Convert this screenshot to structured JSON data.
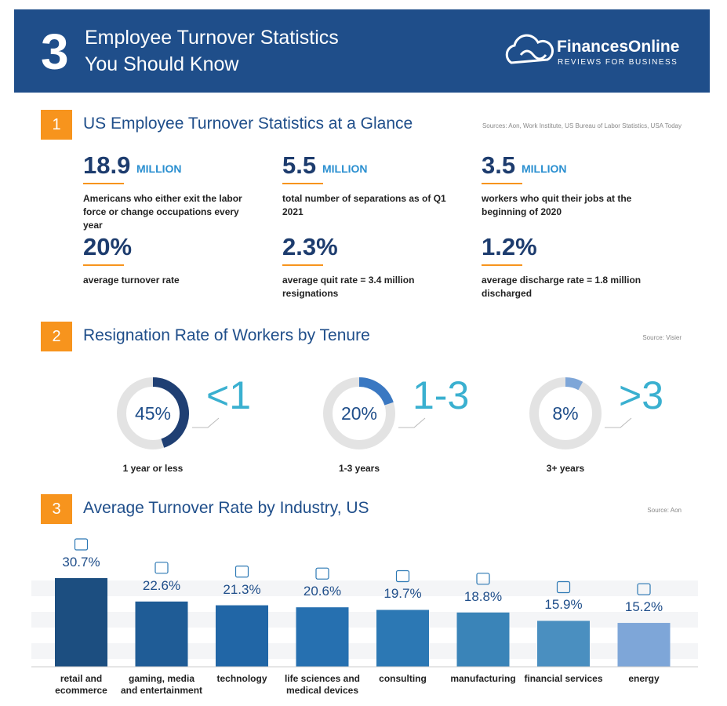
{
  "header": {
    "number": "3",
    "title_lines": [
      "Employee Turnover Statistics",
      "You Should Know"
    ],
    "brand": "FinancesOnline",
    "tagline": "REVIEWS FOR BUSINESS"
  },
  "sections": [
    {
      "number": "1",
      "title": "US Employee Turnover Statistics at a Glance",
      "source": "Sources: Aon, Work Institute, US Bureau of Labor Statistics, USA Today",
      "stats": [
        {
          "value": "18.9",
          "unit": "MILLION",
          "description": "Americans who either exit the labor force or change occupations every year"
        },
        {
          "value": "5.5",
          "unit": "MILLION",
          "description": "total number of separations as of Q1 2021"
        },
        {
          "value": "3.5",
          "unit": "MILLION",
          "description": "workers who quit their jobs at the beginning of 2020"
        },
        {
          "value": "20%",
          "description": "average turnover rate"
        },
        {
          "value": "2.3%",
          "description": "average quit rate = 3.4 million resignations"
        },
        {
          "value": "1.2%",
          "description": "average discharge rate = 1.8 million discharged"
        }
      ]
    },
    {
      "number": "2",
      "title": "Resignation Rate of Workers by Tenure",
      "source": "Source: Visier",
      "items": [
        {
          "value": 45,
          "value_label": "45%",
          "range": "<1",
          "caption": "1 year or less",
          "color": "#1f3f73"
        },
        {
          "value": 20,
          "value_label": "20%",
          "range": "1-3",
          "caption": "1-3 years",
          "color": "#3a78c2"
        },
        {
          "value": 8,
          "value_label": "8%",
          "range": ">3",
          "caption": "3+ years",
          "color": "#7ea6d8"
        }
      ]
    },
    {
      "number": "3",
      "title": "Average Turnover Rate by Industry, US",
      "source": "Source: Aon",
      "categories": [
        "retail and ecommerce",
        "gaming, media and entertainment",
        "technology",
        "life sciences and medical devices",
        "consulting",
        "manufacturing",
        "financial services",
        "energy"
      ],
      "values": [
        30.7,
        22.6,
        21.3,
        20.6,
        19.7,
        18.8,
        15.9,
        15.2
      ],
      "value_labels": [
        "30.7%",
        "22.6%",
        "21.3%",
        "20.6%",
        "19.7%",
        "18.8%",
        "15.9%",
        "15.2%"
      ],
      "colors": [
        "#1c4e80",
        "#1f5c96",
        "#2166a6",
        "#2670b0",
        "#2c78b4",
        "#3a84b8",
        "#4a8fc0",
        "#7ea6d8"
      ]
    }
  ]
}
